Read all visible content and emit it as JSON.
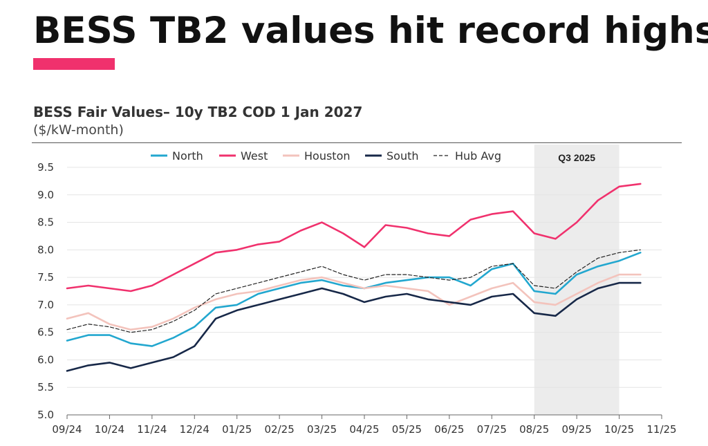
{
  "headline": "BESS TB2 values hit record highs",
  "chart_data": {
    "type": "line",
    "title": "BESS Fair Values– 10y TB2 COD 1 Jan 2027",
    "unit_label": "($/kW-month)",
    "xlabel": "",
    "ylabel": "",
    "ylim": [
      5.0,
      9.5
    ],
    "yticks": [
      "9.5",
      "9.0",
      "8.5",
      "8.0",
      "7.5",
      "7.0",
      "6.5",
      "6.0",
      "5.5",
      "5.0"
    ],
    "x_tick_labels": [
      "09/24",
      "10/24",
      "11/24",
      "12/24",
      "01/25",
      "02/25",
      "03/25",
      "04/25",
      "05/25",
      "06/25",
      "07/25",
      "08/25",
      "09/25",
      "10/25",
      "11/25"
    ],
    "shaded_region": {
      "label": "Q3 2025",
      "from_month": 11,
      "to_month": 13
    },
    "legend": [
      "North",
      "West",
      "Houston",
      "South",
      "Hub Avg"
    ],
    "x_months": [
      0,
      0.5,
      1,
      1.5,
      2,
      2.5,
      3,
      3.5,
      4,
      4.5,
      5,
      5.5,
      6,
      6.5,
      7,
      7.5,
      8,
      8.5,
      9,
      9.5,
      10,
      10.5,
      11,
      11.5,
      12,
      12.5,
      13,
      13.5
    ],
    "series": [
      {
        "name": "North",
        "color": "#22a7cf",
        "dash": false,
        "values": [
          6.35,
          6.45,
          6.45,
          6.3,
          6.25,
          6.4,
          6.6,
          6.95,
          7.0,
          7.2,
          7.3,
          7.4,
          7.45,
          7.35,
          7.3,
          7.4,
          7.45,
          7.5,
          7.5,
          7.35,
          7.65,
          7.75,
          7.25,
          7.2,
          7.55,
          7.7,
          7.8,
          7.95
        ]
      },
      {
        "name": "West",
        "color": "#f0316d",
        "dash": false,
        "values": [
          7.3,
          7.35,
          7.3,
          7.25,
          7.35,
          7.55,
          7.75,
          7.95,
          8.0,
          8.1,
          8.15,
          8.35,
          8.5,
          8.3,
          8.05,
          8.45,
          8.4,
          8.3,
          8.25,
          8.55,
          8.65,
          8.7,
          8.3,
          8.2,
          8.5,
          8.9,
          9.15,
          9.2
        ]
      },
      {
        "name": "Houston",
        "color": "#f3c3bc",
        "dash": false,
        "values": [
          6.75,
          6.85,
          6.65,
          6.55,
          6.6,
          6.75,
          6.95,
          7.1,
          7.2,
          7.25,
          7.35,
          7.45,
          7.5,
          7.4,
          7.3,
          7.35,
          7.3,
          7.25,
          7.0,
          7.15,
          7.3,
          7.4,
          7.05,
          7.0,
          7.2,
          7.4,
          7.55,
          7.55
        ]
      },
      {
        "name": "South",
        "color": "#172848",
        "dash": false,
        "values": [
          5.8,
          5.9,
          5.95,
          5.85,
          5.95,
          6.05,
          6.25,
          6.75,
          6.9,
          7.0,
          7.1,
          7.2,
          7.3,
          7.2,
          7.05,
          7.15,
          7.2,
          7.1,
          7.05,
          7.0,
          7.15,
          7.2,
          6.85,
          6.8,
          7.1,
          7.3,
          7.4,
          7.4
        ]
      },
      {
        "name": "Hub Avg",
        "color": "#222222",
        "dash": true,
        "values": [
          6.55,
          6.65,
          6.6,
          6.5,
          6.55,
          6.7,
          6.9,
          7.2,
          7.3,
          7.4,
          7.5,
          7.6,
          7.7,
          7.55,
          7.45,
          7.55,
          7.55,
          7.5,
          7.45,
          7.5,
          7.7,
          7.75,
          7.35,
          7.3,
          7.6,
          7.85,
          7.95,
          8.0
        ]
      }
    ]
  }
}
